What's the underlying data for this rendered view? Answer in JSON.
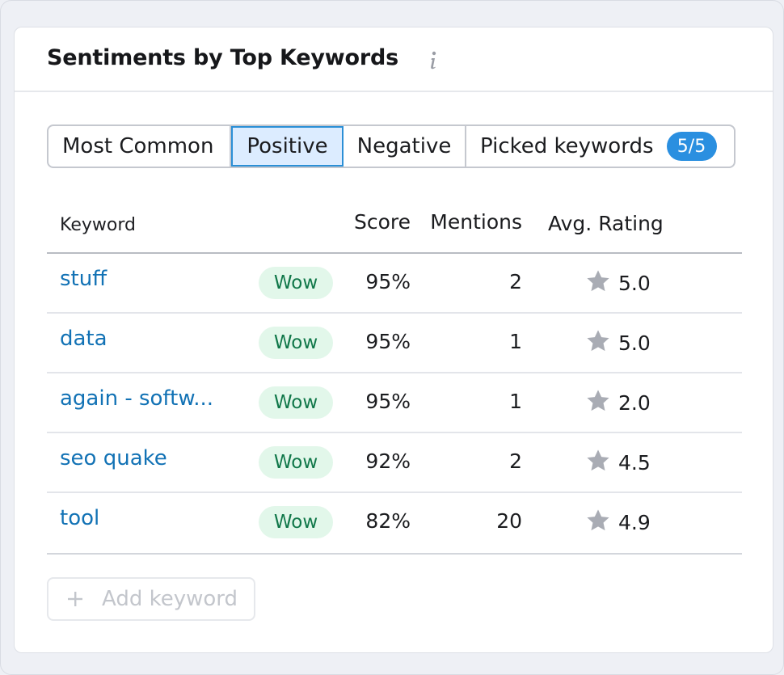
{
  "header": {
    "title": "Sentiments by Top Keywords",
    "info_icon": "info-icon"
  },
  "tabs": [
    {
      "label": "Most Common",
      "selected": false
    },
    {
      "label": "Positive",
      "selected": true
    },
    {
      "label": "Negative",
      "selected": false
    },
    {
      "label": "Picked keywords",
      "selected": false,
      "badge": "5/5"
    }
  ],
  "table": {
    "columns": {
      "keyword": "Keyword",
      "score": "Score",
      "mentions": "Mentions",
      "rating": "Avg. Rating"
    },
    "rows": [
      {
        "keyword": "stuff",
        "tag": "Wow",
        "score": "95%",
        "mentions": "2",
        "rating": "5.0"
      },
      {
        "keyword": "data",
        "tag": "Wow",
        "score": "95%",
        "mentions": "1",
        "rating": "5.0"
      },
      {
        "keyword": "again - softw...",
        "tag": "Wow",
        "score": "95%",
        "mentions": "1",
        "rating": "2.0"
      },
      {
        "keyword": "seo quake",
        "tag": "Wow",
        "score": "92%",
        "mentions": "2",
        "rating": "4.5"
      },
      {
        "keyword": "tool",
        "tag": "Wow",
        "score": "82%",
        "mentions": "20",
        "rating": "4.9"
      }
    ]
  },
  "add_keyword": {
    "label": "Add keyword",
    "icon": "plus-icon",
    "disabled": true
  },
  "colors": {
    "link": "#1272b5",
    "accent": "#2a8fe0",
    "tag_bg": "#e2f7ea",
    "tag_text": "#11784a",
    "star": "#a9acb4"
  }
}
